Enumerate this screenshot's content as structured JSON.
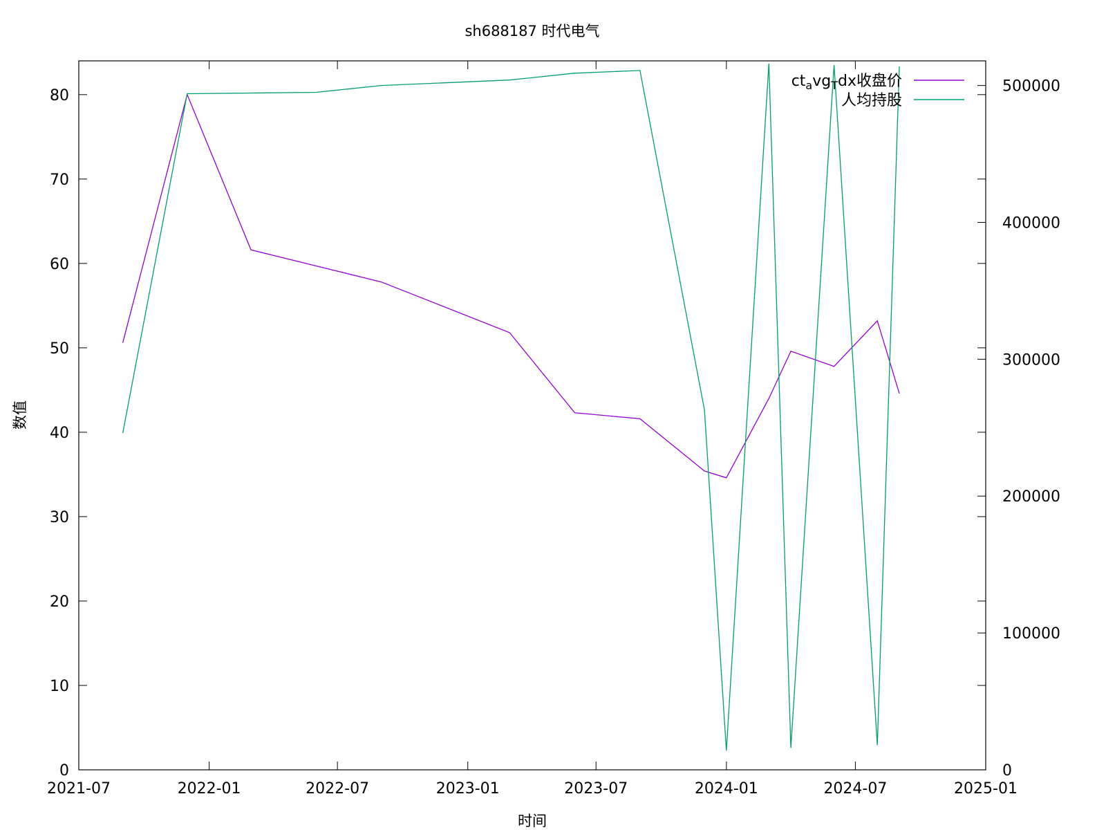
{
  "chart_data": {
    "type": "line",
    "title": "sh688187 时代电气",
    "xlabel": "时间",
    "ylabel": "数值",
    "y2label": "",
    "x_ticks": [
      "2021-07",
      "2022-01",
      "2022-07",
      "2023-01",
      "2023-07",
      "2024-01",
      "2024-07",
      "2025-01"
    ],
    "xlim": [
      "2021-07-01",
      "2025-01-01"
    ],
    "y_ticks": [
      0,
      10,
      20,
      30,
      40,
      50,
      60,
      70,
      80
    ],
    "ylim": [
      0,
      84
    ],
    "y2_ticks": [
      0,
      100000,
      200000,
      300000,
      400000,
      500000
    ],
    "y2lim": [
      0,
      518000
    ],
    "grid": false,
    "legend_position": "top-right",
    "legend": {
      "series1_prefix_a": "ct",
      "series1_sub_a": "a",
      "series1_prefix_b": "vg",
      "series1_sub_b": "T",
      "series1_suffix": "dx收盘价",
      "series2": "人均持股"
    },
    "series": [
      {
        "name": "ctavgTdx收盘价",
        "axis": "left",
        "color": "#9400d3",
        "x": [
          "2021-09-01",
          "2021-12-01",
          "2022-03-01",
          "2022-06-01",
          "2022-09-01",
          "2023-03-01",
          "2023-06-01",
          "2023-09-01",
          "2023-12-01",
          "2024-01-01",
          "2024-03-01",
          "2024-04-01",
          "2024-06-01",
          "2024-08-01",
          "2024-09-01"
        ],
        "y": [
          50.6,
          80.0,
          61.6,
          59.7,
          57.8,
          51.8,
          42.3,
          41.6,
          35.4,
          34.6,
          44.0,
          49.6,
          47.8,
          53.2,
          44.6
        ]
      },
      {
        "name": "人均持股",
        "axis": "right",
        "color": "#009e73",
        "x": [
          "2021-09-01",
          "2021-12-01",
          "2022-06-01",
          "2022-09-01",
          "2023-03-01",
          "2023-06-01",
          "2023-09-01",
          "2023-12-01",
          "2024-01-01",
          "2024-03-01",
          "2024-04-01",
          "2024-06-01",
          "2024-08-01",
          "2024-09-01"
        ],
        "y": [
          246000,
          494000,
          495000,
          500000,
          504000,
          509000,
          511000,
          263000,
          14000,
          516000,
          16000,
          515000,
          18000,
          514000
        ]
      }
    ]
  }
}
